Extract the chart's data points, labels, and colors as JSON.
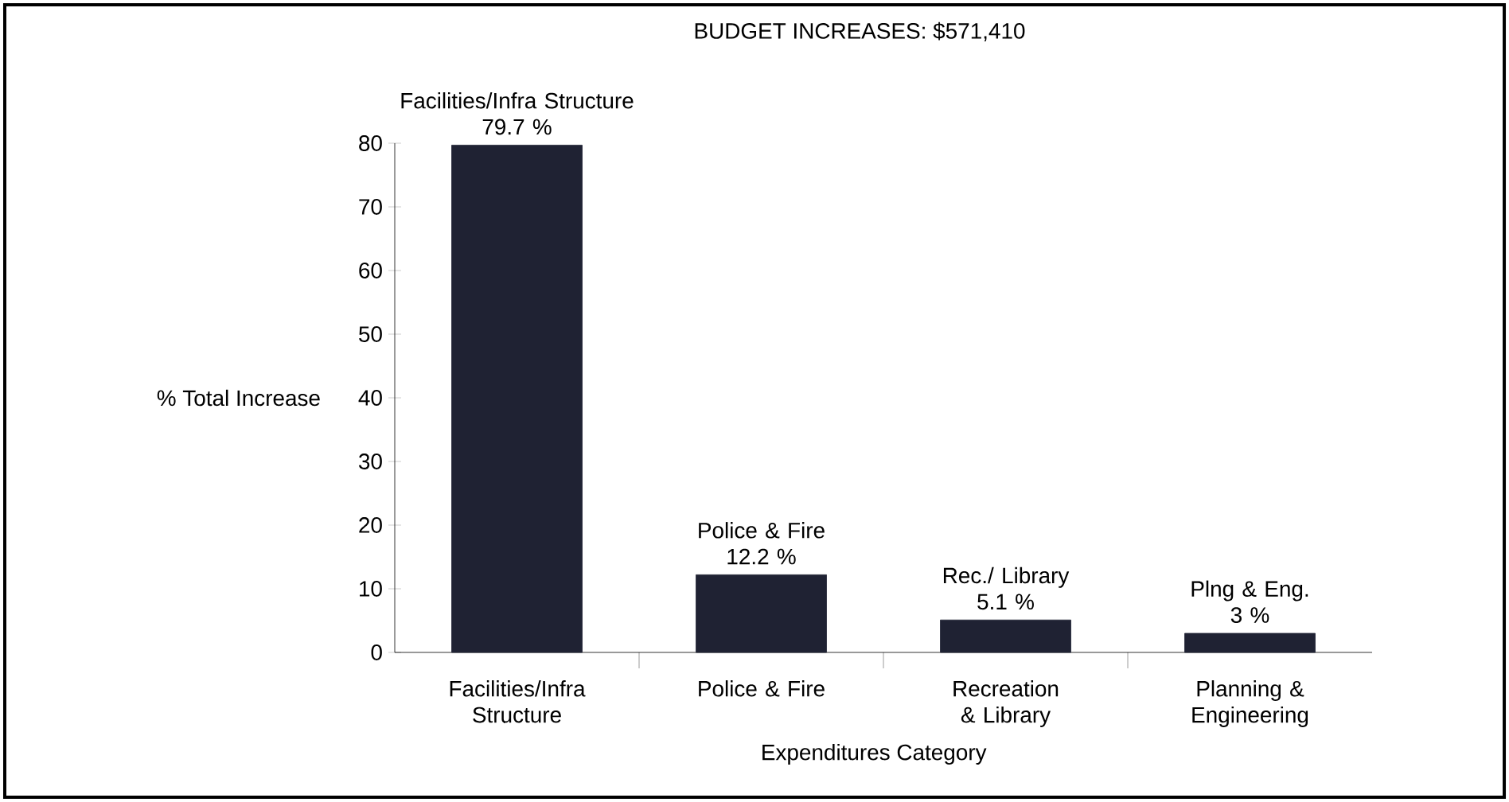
{
  "chart_data": {
    "type": "bar",
    "title": "BUDGET INCREASES: $571,410",
    "xlabel": "Expenditures Category",
    "ylabel": "% Total Increase",
    "categories": [
      "Facilities/Infra Structure",
      "Police & Fire",
      "Recreation & Library",
      "Planning & Engineering"
    ],
    "values": [
      79.7,
      12.2,
      5.1,
      3
    ],
    "value_labels": [
      "79.7 %",
      "12.2 %",
      "5.1 %",
      "3 %"
    ],
    "annotations": [
      {
        "text": "Facilities/Infra Structure",
        "x": "Facilities/Infra Structure",
        "y": 79.7
      },
      {
        "text": "Police & Fire",
        "x": "Police & Fire",
        "y": 12.2
      },
      {
        "text": "Rec./ Library",
        "x": "Recreation & Library",
        "y": 5.1
      },
      {
        "text": "Plng & Eng.",
        "x": "Planning & Engineering",
        "y": 3
      }
    ],
    "color": "#1f2233",
    "ylim": [
      0,
      80
    ],
    "yticks": [
      0,
      10,
      20,
      30,
      40,
      50,
      60,
      70,
      80
    ]
  }
}
